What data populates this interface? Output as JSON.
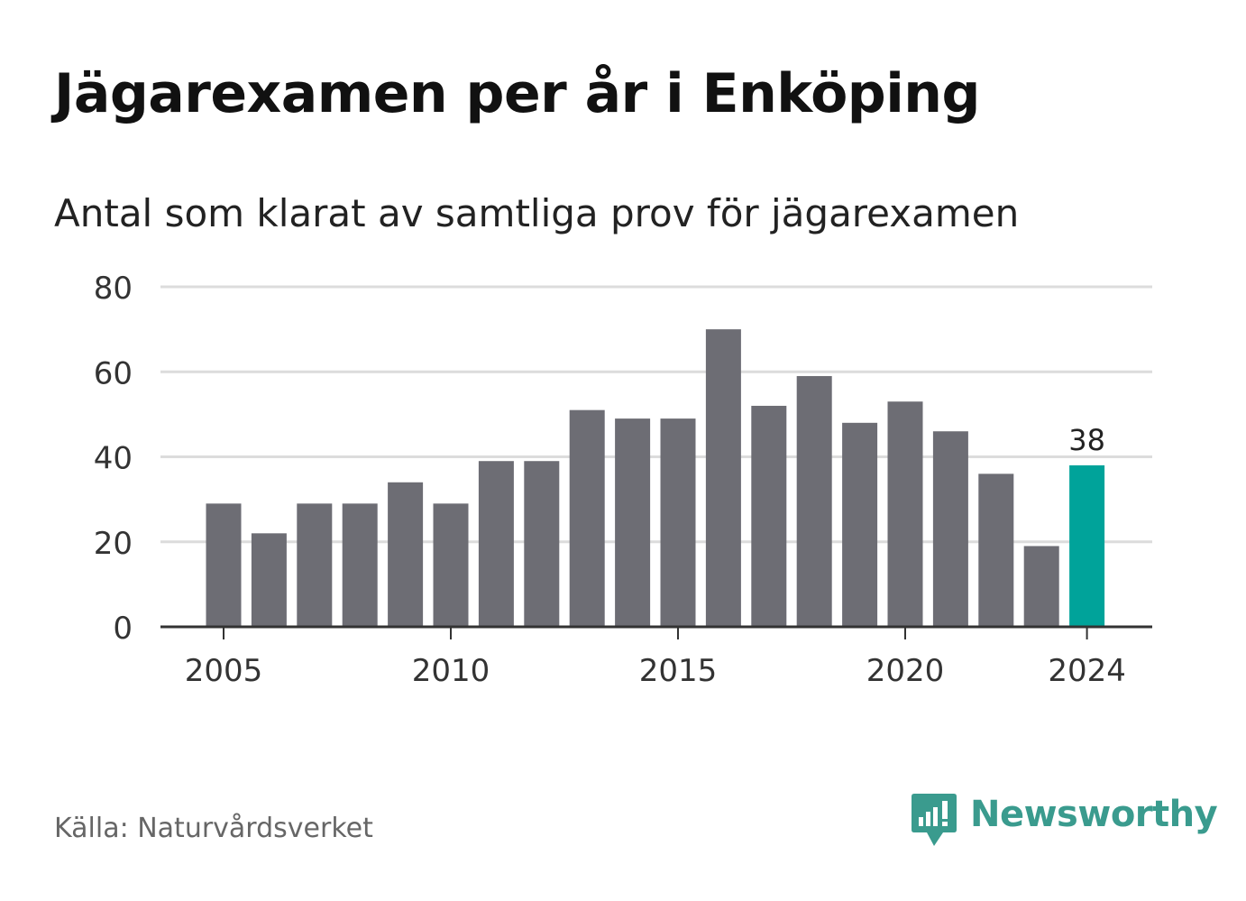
{
  "header": {
    "title": "Jägarexamen per år i Enköping",
    "subtitle": "Antal som klarat av samtliga prov för jägarexamen"
  },
  "chart_data": {
    "type": "bar",
    "x": [
      2005,
      2006,
      2007,
      2008,
      2009,
      2010,
      2011,
      2012,
      2013,
      2014,
      2015,
      2016,
      2017,
      2018,
      2019,
      2020,
      2021,
      2022,
      2023,
      2024
    ],
    "values": [
      29,
      22,
      29,
      29,
      34,
      29,
      39,
      39,
      51,
      49,
      49,
      70,
      52,
      59,
      48,
      53,
      46,
      36,
      19,
      38
    ],
    "xticks": [
      "2005",
      "2010",
      "2015",
      "2020",
      "2024"
    ],
    "yticks": [
      "0",
      "20",
      "40",
      "60",
      "80"
    ],
    "ylim": [
      0,
      80
    ],
    "grid": true,
    "highlight": {
      "year": 2024,
      "label": "38",
      "color": "#00a39a"
    },
    "bar_color": "#6d6d74"
  },
  "footer": {
    "source": "Källa: Naturvårdsverket",
    "brand": "Newsworthy",
    "brand_color": "#3a9b8e",
    "logo_icon": "newsworthy-logo-icon"
  }
}
